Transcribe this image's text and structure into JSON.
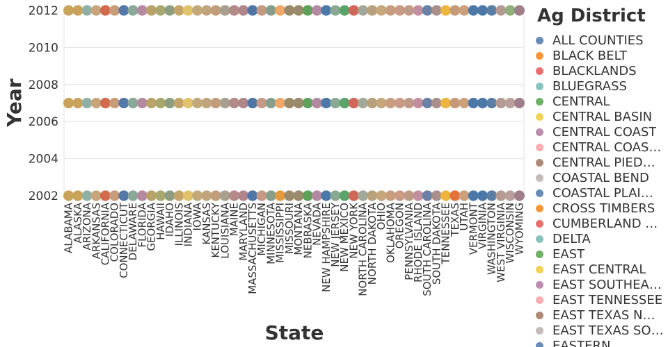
{
  "chart_data": {
    "type": "scatter",
    "title": "",
    "xlabel": "State",
    "ylabel": "Year",
    "y_ticks": [
      2002,
      2004,
      2006,
      2008,
      2010,
      2012
    ],
    "ylim": [
      2002,
      2012
    ],
    "grid": true,
    "legend_position": "right",
    "legend_title": "Ag District",
    "categories": [
      "ALABAMA",
      "ALASKA",
      "ARIZONA",
      "ARKANSAS",
      "CALIFORNIA",
      "COLORADO",
      "CONNECTICUT",
      "DELAWARE",
      "FLORIDA",
      "GEORGIA",
      "HAWAII",
      "IDAHO",
      "ILLINOIS",
      "INDIANA",
      "IOWA",
      "KANSAS",
      "KENTUCKY",
      "LOUISIANA",
      "MAINE",
      "MARYLAND",
      "MASSACHUSETTS",
      "MICHIGAN",
      "MINNESOTA",
      "MISSISSIPPI",
      "MISSOURI",
      "MONTANA",
      "NEBRASKA",
      "NEVADA",
      "NEW HAMPSHIRE",
      "NEW JERSEY",
      "NEW MEXICO",
      "NEW YORK",
      "NORTH CAROLINA",
      "NORTH DAKOTA",
      "OHIO",
      "OKLAHOMA",
      "OREGON",
      "PENNSYLVANIA",
      "RHODE ISLAND",
      "SOUTH CAROLINA",
      "SOUTH DAKOTA",
      "TENNESSEE",
      "TEXAS",
      "UTAH",
      "VERMONT",
      "VIRGINIA",
      "WASHINGTON",
      "WEST VIRGINIA",
      "WISCONSIN",
      "WYOMING"
    ],
    "years": [
      2002,
      2007,
      2012
    ],
    "legend": [
      {
        "label": "ALL COUNTIES",
        "color": "#4c78a8"
      },
      {
        "label": "BLACK BELT",
        "color": "#f58518"
      },
      {
        "label": "BLACKLANDS",
        "color": "#e45756"
      },
      {
        "label": "BLUEGRASS",
        "color": "#72b7b2"
      },
      {
        "label": "CENTRAL",
        "color": "#54a24b"
      },
      {
        "label": "CENTRAL BASIN",
        "color": "#eeca3b"
      },
      {
        "label": "CENTRAL COAST",
        "color": "#b279a2"
      },
      {
        "label": "CENTRAL COAS…",
        "color": "#ff9da6"
      },
      {
        "label": "CENTRAL PIED…",
        "color": "#9d755d"
      },
      {
        "label": "COASTAL BEND",
        "color": "#bab0ac"
      },
      {
        "label": "COASTAL PLAI…",
        "color": "#4c78a8"
      },
      {
        "label": "CROSS TIMBERS",
        "color": "#f58518"
      },
      {
        "label": "CUMBERLAND …",
        "color": "#e45756"
      },
      {
        "label": "DELTA",
        "color": "#72b7b2"
      },
      {
        "label": "EAST",
        "color": "#54a24b"
      },
      {
        "label": "EAST CENTRAL",
        "color": "#eeca3b"
      },
      {
        "label": "EAST SOUTHEA…",
        "color": "#b279a2"
      },
      {
        "label": "EAST TENNESSEE",
        "color": "#ff9da6"
      },
      {
        "label": "EAST TEXAS NO…",
        "color": "#9d755d"
      },
      {
        "label": "EAST TEXAS SO…",
        "color": "#bab0ac"
      },
      {
        "label": "EASTERN",
        "color": "#4c78a8"
      }
    ],
    "point_colors": {
      "2002": [
        "#c9a35a",
        "#c9a35a",
        "#8fb0a4",
        "#c7a57b",
        "#d26b4d",
        "#c99c79",
        "#5478a8",
        "#8aa898",
        "#b58aa0",
        "#b9a36a",
        "#a8a86e",
        "#8f9d7f",
        "#c4a46b",
        "#e0c36a",
        "#c3a87a",
        "#c0a57c",
        "#c29d7a",
        "#a7a08f",
        "#b28a88",
        "#b1868a",
        "#4f75a6",
        "#c49a86",
        "#879e8a",
        "#e59b3d",
        "#9b8a6a",
        "#9c8a6c",
        "#5fa05a",
        "#b48aa2",
        "#4c78a8",
        "#8aa993",
        "#5ca36a",
        "#d0685a",
        "#a2a89a",
        "#b6a17c",
        "#c6a67b",
        "#c89d7e",
        "#c99a85",
        "#bf9a86",
        "#c28fa0",
        "#6a80a4",
        "#a88f8c",
        "#edb440",
        "#e5713a",
        "#cda07c",
        "#4c78a8",
        "#4c78a8",
        "#5b7ea5",
        "#b59a94",
        "#b9a09d",
        "#9e7e8a"
      ],
      "2007": [
        "#c9a35a",
        "#c9a35a",
        "#8fb0a4",
        "#c7a57b",
        "#d26b4d",
        "#c99c79",
        "#5478a8",
        "#8aa898",
        "#b58aa0",
        "#b9a36a",
        "#a8a86e",
        "#8f9d7f",
        "#c4a46b",
        "#e0c36a",
        "#c3a87a",
        "#c0a57c",
        "#c29d7a",
        "#a7a08f",
        "#b28a88",
        "#b1868a",
        "#4f75a6",
        "#c49a86",
        "#879e8a",
        "#efa86a",
        "#9b8a6a",
        "#9c8a6c",
        "#5fa05a",
        "#b48aa2",
        "#4c78a8",
        "#8aa993",
        "#5ca36a",
        "#d0685a",
        "#a2a89a",
        "#b6a17c",
        "#c6a67b",
        "#c89d7e",
        "#c99a85",
        "#bf9a86",
        "#c28fa0",
        "#6a80a4",
        "#a88f8c",
        "#edb440",
        "#c59a78",
        "#cda07c",
        "#4c78a8",
        "#4c78a8",
        "#5b7ea5",
        "#b59a94",
        "#b9a09d",
        "#9e7e8a"
      ],
      "2012": [
        "#c9a35a",
        "#c9a35a",
        "#8fb0a4",
        "#c7a57b",
        "#d26b4d",
        "#c99c79",
        "#5478a8",
        "#8aa898",
        "#b58aa0",
        "#b9a36a",
        "#a8a86e",
        "#8f9d7f",
        "#c4a46b",
        "#e0c36a",
        "#c3a87a",
        "#c0a57c",
        "#c29d7a",
        "#a7a08f",
        "#b28a88",
        "#b1868a",
        "#4f75a6",
        "#c49a86",
        "#879e8a",
        "#efa86a",
        "#9b8a6a",
        "#9c8a6c",
        "#5fa05a",
        "#b48aa2",
        "#4c78a8",
        "#8aa993",
        "#5ca36a",
        "#d0685a",
        "#a2a89a",
        "#b6a17c",
        "#c6a67b",
        "#c89d7e",
        "#c99a85",
        "#bf9a86",
        "#c28fa0",
        "#6a80a4",
        "#a88f8c",
        "#edb440",
        "#c59a78",
        "#cda07c",
        "#4c78a8",
        "#4c78a8",
        "#5b7ea5",
        "#b59a94",
        "#8fb07a",
        "#9e7e8a"
      ]
    }
  }
}
